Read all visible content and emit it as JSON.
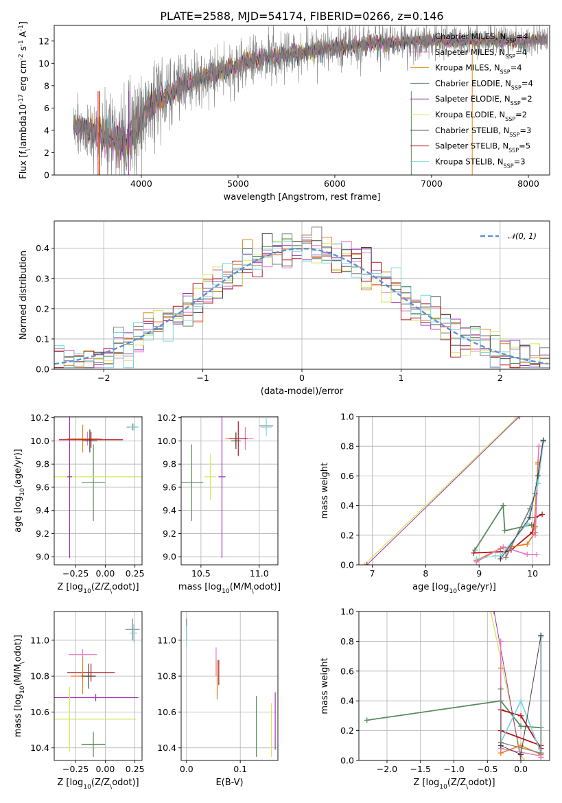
{
  "figure_title": "PLATE=2588, MJD=54174, FIBERID=0266, z=0.146",
  "models": [
    {
      "name": "Chabrier MILES",
      "nssp": 4,
      "color": "#7f7f7f"
    },
    {
      "name": "Salpeter MILES",
      "nssp": 4,
      "color": "#e377c2"
    },
    {
      "name": "Kroupa MILES",
      "nssp": 4,
      "color": "#e8801b"
    },
    {
      "name": "Chabrier ELODIE",
      "nssp": 4,
      "color": "#5a8a5e"
    },
    {
      "name": "Salpeter ELODIE",
      "nssp": 2,
      "color": "#9b2fae"
    },
    {
      "name": "Kroupa ELODIE",
      "nssp": 2,
      "color": "#d7e660"
    },
    {
      "name": "Chabrier STELIB",
      "nssp": 3,
      "color": "#404040"
    },
    {
      "name": "Salpeter STELIB",
      "nssp": 5,
      "color": "#b2141c"
    },
    {
      "name": "Kroupa STELIB",
      "nssp": 3,
      "color": "#7fd3de"
    }
  ],
  "chart_data": [
    {
      "id": "spectrum",
      "type": "line",
      "xlabel": "wavelength [Angstrom, rest frame]",
      "ylabel": "Flux [f$_\\lambda$10$^{-17}$ erg cm$^{-2}$ s$^{-1}$ A$^{-1}$]",
      "xlim": [
        3100,
        8220
      ],
      "ylim": [
        0,
        13.4
      ],
      "xticks": [
        4000,
        5000,
        6000,
        7000,
        8000
      ],
      "yticks": [
        0,
        2,
        4,
        6,
        8,
        10,
        12
      ],
      "continuum": [
        [
          3300,
          4.4
        ],
        [
          3500,
          3.9
        ],
        [
          3700,
          3.2
        ],
        [
          3850,
          2.9
        ],
        [
          3950,
          4.3
        ],
        [
          4100,
          6.2
        ],
        [
          4300,
          7.4
        ],
        [
          4600,
          8.6
        ],
        [
          4900,
          9.6
        ],
        [
          5200,
          10.4
        ],
        [
          5600,
          10.9
        ],
        [
          6000,
          11.4
        ],
        [
          6500,
          11.9
        ],
        [
          7000,
          12.0
        ],
        [
          7500,
          12.0
        ],
        [
          8000,
          12.1
        ],
        [
          8200,
          12.1
        ]
      ],
      "noise_sigma": [
        [
          3300,
          1.2
        ],
        [
          3900,
          2.5
        ],
        [
          4300,
          1.4
        ],
        [
          5500,
          1.0
        ],
        [
          7000,
          0.8
        ],
        [
          8200,
          0.7
        ]
      ],
      "vlines": [
        {
          "model": 1,
          "x": 3550
        },
        {
          "model": 2,
          "x": 3560
        },
        {
          "model": 7,
          "x": 3570
        },
        {
          "model": 4,
          "x": 3870
        },
        {
          "model": 3,
          "x": 6790
        },
        {
          "model": 2,
          "x": 7420
        }
      ]
    },
    {
      "id": "residuals",
      "type": "step-histogram",
      "xlabel": "(data-model)/error",
      "ylabel": "Normed distribution",
      "legend": "$\\mathcal{N}(0,1)$",
      "legend_position": "upper-right",
      "xlim": [
        -2.5,
        2.5
      ],
      "ylim": [
        0,
        0.49
      ],
      "xticks": [
        -2,
        -1,
        0,
        1,
        2
      ],
      "yticks": [
        0.0,
        0.1,
        0.2,
        0.3,
        0.4
      ],
      "bin_width": 0.1
    },
    {
      "id": "age-vs-Z",
      "type": "errorbar",
      "xlabel": "Z [log$_{10}$($Z/Z_\\odot$)]",
      "ylabel": "age  [log$_{10}$($age/yr$)]",
      "xlim": [
        -0.43,
        0.31
      ],
      "ylim": [
        8.93,
        10.21
      ],
      "xticks": [
        -0.25,
        0.0,
        0.25
      ],
      "xticklabels": [
        "−0.25",
        "0.00",
        "0.25"
      ],
      "yticks": [
        9.0,
        9.2,
        9.4,
        9.6,
        9.8,
        10.0,
        10.2
      ],
      "points": [
        {
          "m": 0,
          "x": 0.23,
          "y": 10.12,
          "xe": 0.05,
          "ye": 0.03
        },
        {
          "m": 8,
          "x": 0.24,
          "y": 10.12,
          "xe": 0.04,
          "ye": 0.03
        },
        {
          "m": 1,
          "x": -0.15,
          "y": 10.02,
          "xe": 0.12,
          "ye": 0.06
        },
        {
          "m": 2,
          "x": -0.19,
          "y": 10.02,
          "xe": 0.13,
          "ye": 0.12
        },
        {
          "m": 7,
          "x": -0.12,
          "y": 10.01,
          "xe": 0.27,
          "ye": 0.07
        },
        {
          "m": 6,
          "x": -0.13,
          "y": 10.0,
          "xe": 0.06,
          "ye": 0.1
        },
        {
          "m": 3,
          "x": -0.1,
          "y": 9.64,
          "xe": 0.1,
          "ye": 0.33
        },
        {
          "m": 5,
          "x": -0.3,
          "y": 9.69,
          "xe": 0.62,
          "ye": 0.1
        },
        {
          "m": 4,
          "x": -0.3,
          "y": 9.69,
          "xe": 0.02,
          "ye": 0.7
        }
      ]
    },
    {
      "id": "age-vs-mass",
      "type": "errorbar",
      "xlabel": "mass [log$_{10}$($M/M_\\odot$)]",
      "xlim": [
        10.33,
        11.16
      ],
      "ylim": [
        8.93,
        10.21
      ],
      "xticks": [
        10.5,
        11.0
      ],
      "xticklabels": [
        "10.5",
        "11.0"
      ],
      "yticks": [
        9.0,
        9.2,
        9.4,
        9.6,
        9.8,
        10.0,
        10.2
      ],
      "points": [
        {
          "m": 0,
          "x": 11.06,
          "y": 10.13,
          "xe": 0.06,
          "ye": 0.04
        },
        {
          "m": 8,
          "x": 11.06,
          "y": 10.12,
          "xe": 0.05,
          "ye": 0.08
        },
        {
          "m": 1,
          "x": 10.88,
          "y": 10.02,
          "xe": 0.07,
          "ye": 0.1
        },
        {
          "m": 2,
          "x": 10.8,
          "y": 10.02,
          "xe": 0.09,
          "ye": 0.06
        },
        {
          "m": 7,
          "x": 10.82,
          "y": 10.02,
          "xe": 0.08,
          "ye": 0.15
        },
        {
          "m": 6,
          "x": 10.8,
          "y": 10.0,
          "xe": 0.04,
          "ye": 0.07
        },
        {
          "m": 3,
          "x": 10.42,
          "y": 9.64,
          "xe": 0.1,
          "ye": 0.33
        },
        {
          "m": 5,
          "x": 10.58,
          "y": 9.69,
          "xe": 0.05,
          "ye": 0.2
        },
        {
          "m": 4,
          "x": 10.68,
          "y": 9.69,
          "xe": 0.03,
          "ye": 0.7
        }
      ]
    },
    {
      "id": "weight-vs-age",
      "type": "line",
      "xlabel": "age  [log$_{10}$($age/yr$)]",
      "ylabel": "mass weight",
      "xlim": [
        6.75,
        10.32
      ],
      "ylim": [
        0,
        1.0
      ],
      "xticks": [
        7,
        8,
        9,
        10
      ],
      "xticklabels": [
        "7",
        "8",
        "9",
        "10"
      ],
      "yticks": [
        0.0,
        0.2,
        0.4,
        0.6,
        0.8,
        1.0
      ],
      "series": [
        {
          "m": 5,
          "x": [
            6.85,
            9.7
          ],
          "y": [
            0.0,
            0.99
          ],
          "lw": 1.4
        },
        {
          "m": 4,
          "x": [
            6.9,
            9.75
          ],
          "y": [
            0.0,
            1.0
          ],
          "lw": 1.0
        },
        {
          "m": 3,
          "x": [
            8.92,
            9.45,
            9.48,
            9.98,
            10.05
          ],
          "y": [
            0.1,
            0.4,
            0.23,
            0.27,
            0.26
          ],
          "lw": 1.8
        },
        {
          "m": 7,
          "x": [
            8.9,
            9.5,
            9.6,
            10.0,
            10.05,
            10.18
          ],
          "y": [
            0.08,
            0.09,
            0.1,
            0.22,
            0.32,
            0.34
          ],
          "lw": 1.8
        },
        {
          "m": 2,
          "x": [
            8.95,
            9.4,
            9.9,
            10.05
          ],
          "y": [
            0.03,
            0.11,
            0.14,
            0.22
          ],
          "lw": 1.8
        },
        {
          "m": 1,
          "x": [
            8.95,
            9.45,
            9.9,
            10.08
          ],
          "y": [
            0.02,
            0.12,
            0.07,
            0.07
          ],
          "lw": 1.6
        },
        {
          "m": 1,
          "x": [
            10.05,
            10.1,
            10.12
          ],
          "y": [
            0.2,
            0.68,
            0.8
          ],
          "lw": 1.8
        },
        {
          "m": 2,
          "x": [
            10.03,
            10.1
          ],
          "y": [
            0.25,
            0.69
          ],
          "lw": 1.2
        },
        {
          "m": 0,
          "x": [
            9.5,
            9.95,
            10.05,
            10.2
          ],
          "y": [
            0.05,
            0.38,
            0.48,
            0.84
          ],
          "lw": 1.8
        },
        {
          "m": 8,
          "x": [
            9.4,
            9.9,
            10.1,
            10.2
          ],
          "y": [
            0.06,
            0.28,
            0.55,
            0.83
          ],
          "lw": 2.0
        },
        {
          "m": 6,
          "x": [
            9.4,
            9.95,
            10.1,
            10.2
          ],
          "y": [
            0.04,
            0.32,
            0.6,
            0.84
          ],
          "lw": 1.0
        },
        {
          "m": 8,
          "x": [
            8.95,
            9.3
          ],
          "y": [
            0.04,
            0.06
          ],
          "lw": 1.0
        }
      ]
    },
    {
      "id": "mass-vs-Z",
      "type": "errorbar",
      "xlabel": "Z [log$_{10}$($Z/Z_\\odot$)]",
      "ylabel": "mass [log$_{10}$($M/M_\\odot$)]",
      "xlim": [
        -0.43,
        0.31
      ],
      "ylim": [
        10.33,
        11.16
      ],
      "xticks": [
        -0.25,
        0.0,
        0.25
      ],
      "xticklabels": [
        "−0.25",
        "0.00",
        "0.25"
      ],
      "yticks": [
        10.4,
        10.6,
        10.8,
        11.0
      ],
      "points": [
        {
          "m": 0,
          "x": 0.23,
          "y": 11.06,
          "xe": 0.06,
          "ye": 0.06
        },
        {
          "m": 8,
          "x": 0.24,
          "y": 11.04,
          "xe": 0.03,
          "ye": 0.05
        },
        {
          "m": 1,
          "x": -0.19,
          "y": 10.92,
          "xe": 0.12,
          "ye": 0.03
        },
        {
          "m": 7,
          "x": -0.12,
          "y": 10.82,
          "xe": 0.2,
          "ye": 0.05
        },
        {
          "m": 2,
          "x": -0.19,
          "y": 10.8,
          "xe": 0.1,
          "ye": 0.1
        },
        {
          "m": 6,
          "x": -0.14,
          "y": 10.8,
          "xe": 0.06,
          "ye": 0.07
        },
        {
          "m": 4,
          "x": -0.08,
          "y": 10.68,
          "xe": 0.36,
          "ye": 0.02
        },
        {
          "m": 5,
          "x": -0.3,
          "y": 10.56,
          "xe": 0.56,
          "ye": 0.18
        },
        {
          "m": 3,
          "x": -0.1,
          "y": 10.42,
          "xe": 0.1,
          "ye": 0.07
        }
      ]
    },
    {
      "id": "mass-vs-EBV",
      "type": "errorbar",
      "xlabel": "E(B-V)",
      "xlim": [
        -0.01,
        0.17
      ],
      "ylim": [
        10.33,
        11.16
      ],
      "xticks": [
        0.0,
        0.1
      ],
      "xticklabels": [
        "0.0",
        "0.1"
      ],
      "yticks": [
        10.4,
        10.6,
        10.8,
        11.0
      ],
      "points": [
        {
          "m": 0,
          "x": 0.0,
          "y": 11.06,
          "xe": 0.0,
          "ye": 0.06
        },
        {
          "m": 8,
          "x": 0.0,
          "y": 11.02,
          "xe": 0.0,
          "ye": 0.06
        },
        {
          "m": 1,
          "x": 0.055,
          "y": 10.88,
          "xe": 0.0,
          "ye": 0.08
        },
        {
          "m": 2,
          "x": 0.057,
          "y": 10.78,
          "xe": 0.0,
          "ye": 0.11
        },
        {
          "m": 7,
          "x": 0.06,
          "y": 10.82,
          "xe": 0.0,
          "ye": 0.07
        },
        {
          "m": 3,
          "x": 0.13,
          "y": 10.52,
          "xe": 0.0,
          "ye": 0.17
        },
        {
          "m": 5,
          "x": 0.158,
          "y": 10.5,
          "xe": 0.0,
          "ye": 0.15
        },
        {
          "m": 4,
          "x": 0.165,
          "y": 10.55,
          "xe": 0.0,
          "ye": 0.16
        }
      ]
    },
    {
      "id": "weight-vs-Z",
      "type": "line",
      "xlabel": "Z [log$_{10}$($Z/Z_\\odot$)]",
      "ylabel": "mass weight",
      "xlim": [
        -2.42,
        0.43
      ],
      "ylim": [
        0,
        1.0
      ],
      "xticks": [
        -2.0,
        -1.5,
        -1.0,
        -0.5,
        0.0
      ],
      "xticklabels": [
        "−2.0",
        "−1.5",
        "−1.0",
        "−0.5",
        "0.0"
      ],
      "yticks": [
        0.0,
        0.2,
        0.4,
        0.6,
        0.8,
        1.0
      ],
      "series": [
        {
          "m": 5,
          "x": [
            -0.45,
            -0.0,
            0.05
          ],
          "y": [
            1.0,
            0.04,
            0.0
          ],
          "lw": 1.4
        },
        {
          "m": 4,
          "x": [
            -0.4,
            0.0
          ],
          "y": [
            1.0,
            0.0
          ],
          "lw": 1.0
        },
        {
          "m": 3,
          "x": [
            -2.3,
            -0.3,
            0.0,
            0.3,
            0.3
          ],
          "y": [
            0.27,
            0.4,
            0.23,
            0.22,
            0.05
          ],
          "lw": 1.8
        },
        {
          "m": 7,
          "x": [
            -0.3,
            0.0,
            0.3,
            0.3,
            -0.3,
            -0.3
          ],
          "y": [
            0.34,
            0.3,
            0.08,
            0.1,
            0.2,
            0.34
          ],
          "lw": 1.8
        },
        {
          "m": 2,
          "x": [
            -0.3,
            -0.3,
            0.0,
            0.3
          ],
          "y": [
            0.62,
            0.05,
            0.1,
            0.04
          ],
          "lw": 1.6
        },
        {
          "m": 1,
          "x": [
            -0.3,
            -0.3,
            0.3,
            0.3
          ],
          "y": [
            0.8,
            0.08,
            0.03,
            0.02
          ],
          "lw": 1.4
        },
        {
          "m": 8,
          "x": [
            -0.3,
            0.0,
            0.3,
            0.3
          ],
          "y": [
            0.12,
            0.4,
            0.05,
            0.83
          ],
          "lw": 1.8
        },
        {
          "m": 0,
          "x": [
            -0.3,
            -0.3,
            0.3,
            0.3
          ],
          "y": [
            0.48,
            0.12,
            0.05,
            0.84
          ],
          "lw": 1.2
        },
        {
          "m": 6,
          "x": [
            -0.3,
            0.0,
            0.3
          ],
          "y": [
            0.1,
            0.04,
            0.84
          ],
          "lw": 1.0
        }
      ]
    }
  ]
}
